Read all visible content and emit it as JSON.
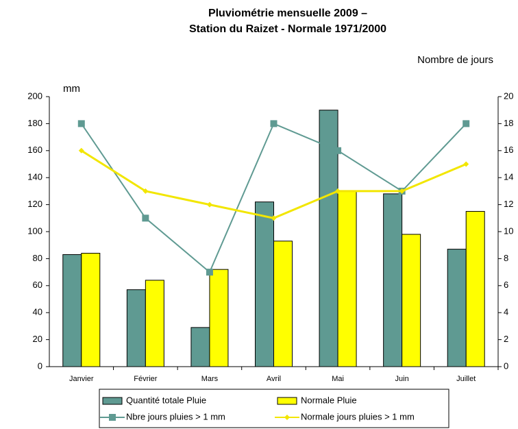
{
  "chart_data": {
    "type": "combo",
    "title": [
      "Pluviométrie mensuelle 2009 –",
      "Station du Raizet - Normale 1971/2000"
    ],
    "y_label": "mm",
    "y2_label": "Nombre de jours",
    "categories": [
      "Janvier",
      "Février",
      "Mars",
      "Avril",
      "Mai",
      "Juin",
      "Juillet"
    ],
    "series": [
      {
        "name": "Quantité totale Pluie",
        "type": "bar",
        "color": "#5f9a92",
        "values": [
          83,
          57,
          29,
          122,
          190,
          128,
          87
        ]
      },
      {
        "name": "Normale Pluie",
        "type": "bar",
        "color": "#ffff00",
        "values": [
          84,
          64,
          72,
          93,
          130,
          98,
          115
        ]
      },
      {
        "name": "Nbre jours pluies > 1 mm",
        "type": "line",
        "axis": "y2",
        "color": "#5f9a92",
        "values": [
          18,
          11,
          7,
          18,
          16,
          13,
          18
        ]
      },
      {
        "name": "Normale jours pluies > 1 mm",
        "type": "line",
        "axis": "y2",
        "color": "#f2e600",
        "values": [
          16,
          13,
          12,
          11,
          13,
          13,
          15
        ]
      }
    ],
    "ylim": [
      0,
      200
    ],
    "yticks": [
      0,
      20,
      40,
      60,
      80,
      100,
      120,
      140,
      160,
      180,
      200
    ],
    "y2lim": [
      0,
      20
    ],
    "y2ticks": [
      0,
      2,
      4,
      6,
      8,
      10,
      12,
      14,
      16,
      18,
      20
    ]
  }
}
